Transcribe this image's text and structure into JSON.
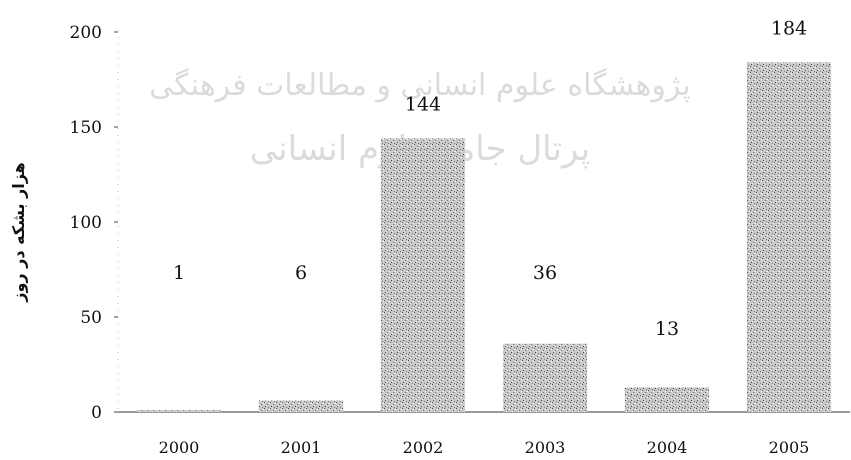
{
  "watermark": {
    "line1": "پژوهشگاه علوم انسانی و مطالعات فرهنگی",
    "line2": "پرتال جامع علوم انسانی"
  },
  "chart_data": {
    "type": "bar",
    "categories": [
      "2000",
      "2001",
      "2002",
      "2003",
      "2004",
      "2005"
    ],
    "values": [
      1,
      6,
      144,
      36,
      13,
      184
    ],
    "data_labels": [
      "1",
      "6",
      "144",
      "36",
      "13",
      "184"
    ],
    "ylabel": "هزار بشکه در روز",
    "xlabel": "",
    "title": "",
    "ylim": [
      0,
      200
    ],
    "yticks": [
      0,
      50,
      100,
      150,
      200
    ],
    "grid": false,
    "bar_color": "#9a9a9a"
  }
}
